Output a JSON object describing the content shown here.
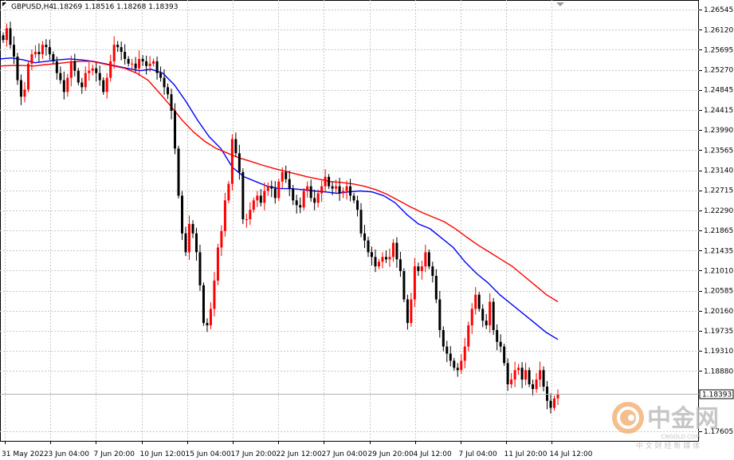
{
  "header": {
    "symbol_timeframe": "GBPUSD,H4",
    "ohlc": "1.18269 1.18516 1.18268 1.18393"
  },
  "price_axis": {
    "labels": [
      "1.26545",
      "1.26120",
      "1.25695",
      "1.25270",
      "1.24845",
      "1.24415",
      "1.23990",
      "1.23565",
      "1.23140",
      "1.22715",
      "1.22290",
      "1.21865",
      "1.21435",
      "1.21010",
      "1.20585",
      "1.20160",
      "1.19735",
      "1.19310",
      "1.18880",
      "1.18393",
      "1.17605"
    ],
    "current_price_label": "1.18393"
  },
  "time_axis": {
    "labels": [
      "31 May 2022",
      "3 Jun 04:00",
      "7 Jun 20:00",
      "10 Jun 12:00",
      "15 Jun 04:00",
      "17 Jun 20:00",
      "22 Jun 12:00",
      "27 Jun 04:00",
      "29 Jun 20:00",
      "4 Jul 12:00",
      "7 Jul 04:00",
      "11 Jul 20:00",
      "14 Jul 12:00"
    ]
  },
  "watermark": {
    "title": "中金网",
    "domain": "CNGOLD.COM",
    "subtitle": "中 文 财 经 新 媒 体"
  },
  "colors": {
    "background": "#ffffff",
    "grid": "#c8c8c8",
    "bull": "#ff0000",
    "bear": "#000000",
    "ma_fast": "#0000ff",
    "ma_slow": "#ff0000",
    "watermark_orange": "#f0a060"
  },
  "chart_data": {
    "type": "candlestick",
    "symbol": "GBPUSD",
    "timeframe": "H4",
    "ylim": [
      1.174,
      1.2675
    ],
    "grid": true,
    "x_ticks": [
      "31 May 2022",
      "3 Jun 04:00",
      "7 Jun 20:00",
      "10 Jun 12:00",
      "15 Jun 04:00",
      "17 Jun 20:00",
      "22 Jun 12:00",
      "27 Jun 04:00",
      "29 Jun 20:00",
      "4 Jul 12:00",
      "7 Jul 04:00",
      "11 Jul 20:00",
      "14 Jul 12:00"
    ],
    "y_ticks": [
      1.26545,
      1.2612,
      1.25695,
      1.2527,
      1.24845,
      1.24415,
      1.2399,
      1.23565,
      1.2314,
      1.22715,
      1.2229,
      1.21865,
      1.21435,
      1.2101,
      1.20585,
      1.2016,
      1.19735,
      1.1931,
      1.1888,
      1.17605
    ],
    "last_price": 1.18393,
    "close_series": [
      1.259,
      1.2615,
      1.258,
      1.2555,
      1.2505,
      1.247,
      1.2485,
      1.254,
      1.256,
      1.2565,
      1.256,
      1.258,
      1.2575,
      1.256,
      1.2545,
      1.252,
      1.2505,
      1.248,
      1.251,
      1.2545,
      1.2525,
      1.25,
      1.249,
      1.252,
      1.2525,
      1.253,
      1.252,
      1.2505,
      1.248,
      1.251,
      1.2545,
      1.258,
      1.2575,
      1.2565,
      1.255,
      1.254,
      1.254,
      1.253,
      1.255,
      1.2545,
      1.2535,
      1.254,
      1.2545,
      1.252,
      1.251,
      1.249,
      1.2475,
      1.244,
      1.236,
      1.226,
      1.218,
      1.214,
      1.22,
      1.218,
      1.214,
      1.207,
      1.199,
      1.1985,
      1.202,
      1.208,
      1.215,
      1.2185,
      1.225,
      1.2285,
      1.238,
      1.235,
      1.231,
      1.221,
      1.221,
      1.223,
      1.225,
      1.226,
      1.2245,
      1.227,
      1.228,
      1.2275,
      1.2255,
      1.229,
      1.231,
      1.2295,
      1.2275,
      1.225,
      1.224,
      1.2235,
      1.227,
      1.228,
      1.2255,
      1.2245,
      1.2265,
      1.228,
      1.23,
      1.228,
      1.2275,
      1.228,
      1.2265,
      1.227,
      1.228,
      1.226,
      1.225,
      1.223,
      1.218,
      1.2165,
      1.214,
      1.213,
      1.211,
      1.212,
      1.213,
      1.2125,
      1.213,
      1.216,
      1.2125,
      1.21,
      1.204,
      1.199,
      1.204,
      1.211,
      1.21,
      1.211,
      1.214,
      1.211,
      1.209,
      1.204,
      1.1975,
      1.194,
      1.1925,
      1.191,
      1.1895,
      1.189,
      1.191,
      1.194,
      1.1985,
      1.202,
      1.205,
      1.202,
      1.1995,
      1.1985,
      1.2035,
      1.1975,
      1.195,
      1.194,
      1.1905,
      1.186,
      1.187,
      1.189,
      1.1895,
      1.187,
      1.189,
      1.186,
      1.185,
      1.187,
      1.189,
      1.1855,
      1.1825,
      1.181,
      1.183,
      1.1839
    ],
    "series": [
      {
        "name": "",
        "type": "line",
        "color": "#0000ff",
        "values": [
          1.255,
          1.2552,
          1.2548,
          1.2542,
          1.2545,
          1.2548,
          1.255,
          1.2548,
          1.2545,
          1.254,
          1.2535,
          1.253,
          1.2525,
          1.2528,
          1.252,
          1.2495,
          1.246,
          1.242,
          1.2385,
          1.236,
          1.232,
          1.23,
          1.229,
          1.228,
          1.2275,
          1.2275,
          1.2273,
          1.227,
          1.2268,
          1.2265,
          1.2268,
          1.227,
          1.2268,
          1.226,
          1.2245,
          1.222,
          1.22,
          1.219,
          1.217,
          1.215,
          1.212,
          1.2095,
          1.2075,
          1.205,
          1.203,
          1.201,
          1.199,
          1.197,
          1.1955
        ]
      },
      {
        "name": "",
        "type": "line",
        "color": "#ff0000",
        "values": [
          1.2535,
          1.2536,
          1.2536,
          1.2535,
          1.2538,
          1.254,
          1.2543,
          1.2545,
          1.2545,
          1.254,
          1.2535,
          1.253,
          1.252,
          1.2505,
          1.2478,
          1.245,
          1.242,
          1.2395,
          1.2375,
          1.236,
          1.235,
          1.234,
          1.2333,
          1.2325,
          1.2318,
          1.2312,
          1.2306,
          1.23,
          1.2295,
          1.229,
          1.2288,
          1.2285,
          1.228,
          1.2273,
          1.2263,
          1.225,
          1.2237,
          1.2225,
          1.2215,
          1.2205,
          1.219,
          1.2172,
          1.2155,
          1.214,
          1.2125,
          1.211,
          1.209,
          1.207,
          1.205,
          1.2035
        ]
      }
    ]
  }
}
